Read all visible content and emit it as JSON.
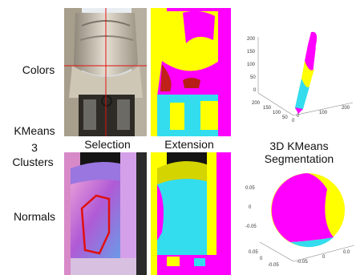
{
  "labels": {
    "colors": "Colors",
    "kmeans_clusters": [
      "KMeans",
      "3",
      "Clusters"
    ],
    "normals": "Normals",
    "selection": "Selection",
    "extension": "Extension",
    "seg_title": [
      "3D KMeans",
      "Segmentation"
    ]
  },
  "palette": {
    "magenta": "#ff00ff",
    "yellow": "#ffff00",
    "cyan": "#33ddee",
    "selection_red": "#e01010"
  },
  "plot_top": {
    "z_ticks": [
      "200",
      "150",
      "100",
      "50",
      "0"
    ],
    "x_ticks": [
      "200",
      "150",
      "100",
      "50",
      "0"
    ],
    "y_ticks": [
      "0",
      "100",
      "200"
    ]
  },
  "plot_bottom": {
    "z_ticks": [
      "0.05",
      "0",
      "-0.05"
    ],
    "x_ticks": [
      "0.05",
      "0",
      "-0.05"
    ],
    "y_ticks": [
      "-0.05",
      "0",
      "0.0"
    ]
  }
}
